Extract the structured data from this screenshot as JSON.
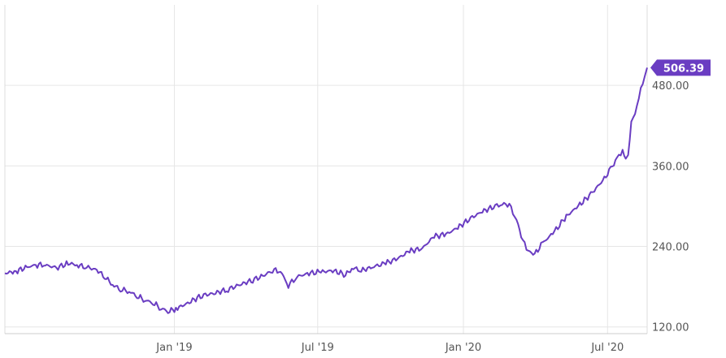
{
  "chart_data": {
    "type": "line",
    "title": "",
    "xlabel": "",
    "ylabel": "",
    "x_ticks": [
      {
        "label": "Jan '19",
        "date": "2019-01-01"
      },
      {
        "label": "Jul '19",
        "date": "2019-07-01"
      },
      {
        "label": "Jan '20",
        "date": "2020-01-01"
      },
      {
        "label": "Jul '20",
        "date": "2020-07-01"
      }
    ],
    "y_ticks": [
      "120.00",
      "240.00",
      "360.00",
      "480.00"
    ],
    "y_tick_values": [
      120,
      240,
      360,
      480
    ],
    "xlim": [
      "2018-06-01",
      "2020-08-20"
    ],
    "ylim": [
      110,
      600
    ],
    "grid": true,
    "last_value_label": "506.39",
    "line_color": "#6a3dc2",
    "series": [
      {
        "x": [
          "2018-06-01",
          "2018-06-15",
          "2018-07-01",
          "2018-07-10",
          "2018-07-20",
          "2018-08-05",
          "2018-08-20",
          "2018-08-31",
          "2018-09-10",
          "2018-09-25",
          "2018-10-05",
          "2018-10-15",
          "2018-10-25",
          "2018-11-05",
          "2018-11-15",
          "2018-11-25",
          "2018-12-05",
          "2018-12-15",
          "2018-12-24",
          "2019-01-05",
          "2019-01-20",
          "2019-02-05",
          "2019-02-20",
          "2019-03-10",
          "2019-03-25",
          "2019-04-10",
          "2019-04-25",
          "2019-05-05",
          "2019-05-15",
          "2019-05-25",
          "2019-06-05",
          "2019-06-20",
          "2019-07-05",
          "2019-07-20",
          "2019-08-05",
          "2019-08-15",
          "2019-08-25",
          "2019-09-10",
          "2019-09-25",
          "2019-10-10",
          "2019-10-25",
          "2019-11-10",
          "2019-11-25",
          "2019-12-10",
          "2019-12-25",
          "2020-01-10",
          "2020-01-25",
          "2020-02-10",
          "2020-02-19",
          "2020-02-28",
          "2020-03-08",
          "2020-03-16",
          "2020-03-23",
          "2020-03-31",
          "2020-04-10",
          "2020-04-25",
          "2020-05-10",
          "2020-05-25",
          "2020-06-10",
          "2020-06-25",
          "2020-07-05",
          "2020-07-13",
          "2020-07-20",
          "2020-07-24",
          "2020-07-27",
          "2020-07-31",
          "2020-08-07",
          "2020-08-12",
          "2020-08-17",
          "2020-08-20"
        ],
        "values": [
          200,
          203,
          210,
          212,
          213,
          208,
          215,
          212,
          210,
          205,
          195,
          183,
          176,
          173,
          166,
          160,
          156,
          148,
          143,
          148,
          157,
          167,
          170,
          176,
          183,
          190,
          197,
          205,
          203,
          182,
          195,
          200,
          202,
          204,
          198,
          208,
          204,
          210,
          215,
          222,
          233,
          237,
          255,
          258,
          268,
          282,
          292,
          300,
          303,
          302,
          280,
          248,
          233,
          228,
          245,
          262,
          285,
          300,
          318,
          338,
          355,
          372,
          380,
          370,
          372,
          425,
          445,
          475,
          490,
          506.39
        ]
      }
    ]
  }
}
